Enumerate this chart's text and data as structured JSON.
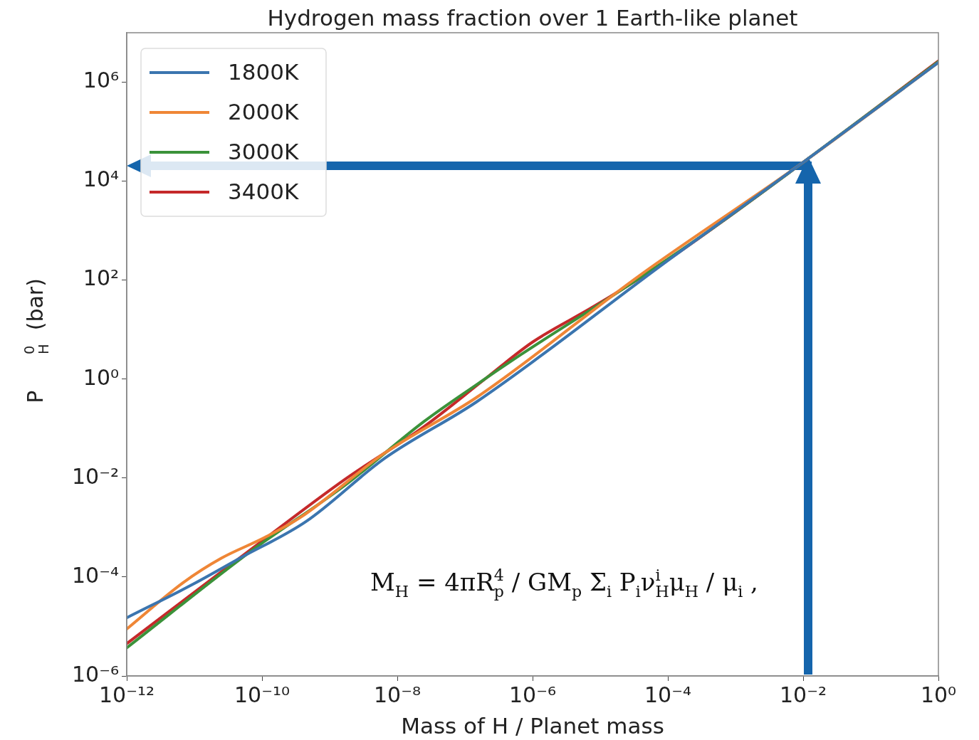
{
  "chart_data": {
    "type": "line",
    "title": "Hydrogen mass fraction over 1 Earth-like planet",
    "xlabel": "Mass of H / Planet mass",
    "ylabel": "P$_{H}$$^{0}$  (bar)",
    "log": "xy",
    "grid": false,
    "legend": "top left",
    "marker": "none",
    "line_style": "solid",
    "xlim": [
      1e-12,
      1
    ],
    "ylim": [
      1e-06,
      10000000.0
    ],
    "xticks": [
      {
        "value": 1e-12,
        "label": "10⁻¹²"
      },
      {
        "value": 1e-10,
        "label": "10⁻¹⁰"
      },
      {
        "value": 1e-08,
        "label": "10⁻⁸"
      },
      {
        "value": 1e-06,
        "label": "10⁻⁶"
      },
      {
        "value": 0.0001,
        "label": "10⁻⁴"
      },
      {
        "value": 0.01,
        "label": "10⁻²"
      },
      {
        "value": 1,
        "label": "10⁰"
      }
    ],
    "yticks": [
      {
        "value": 1e-06,
        "label": "10⁻⁶"
      },
      {
        "value": 0.0001,
        "label": "10⁻⁴"
      },
      {
        "value": 0.01,
        "label": "10⁻²"
      },
      {
        "value": 1,
        "label": "10⁰"
      },
      {
        "value": 100,
        "label": "10²"
      },
      {
        "value": 10000.0,
        "label": "10⁴"
      },
      {
        "value": 1000000.0,
        "label": "10⁶"
      }
    ],
    "annotations": [
      "M$_{H}$ = 4πR$_{p}$$^{4}$ / GM$_{p}$ Σ$_{i}$ P$_{i}$ν$_{H}$$^{i}$μ$_{H}$ / μ$_{i}$ ,"
    ],
    "series": [
      {
        "name": "1800K",
        "color": "#3b75af",
        "x": [
          1e-12,
          1e-11,
          4.7e-11,
          4.4e-10,
          6.5e-09,
          1.5e-07,
          0.0001,
          0.01,
          1
        ],
        "values": [
          1.5e-05,
          7.4e-05,
          0.00024,
          0.0013,
          0.025,
          0.35,
          250.0,
          24000.0,
          2500000.0
        ]
      },
      {
        "name": "2000K",
        "color": "#ef8636",
        "x": [
          1e-12,
          7e-12,
          2.5e-11,
          1.1e-10,
          3.7e-10,
          6.5e-09,
          1.5e-07,
          4e-05,
          0.01,
          1
        ],
        "values": [
          8.9e-06,
          7.9e-05,
          0.00024,
          0.00063,
          0.0016,
          0.032,
          0.43,
          130.0,
          24000.0,
          2500000.0
        ]
      },
      {
        "name": "3000K",
        "color": "#3b923a",
        "x": [
          1e-12,
          7.2e-11,
          1.7e-09,
          2.5e-08,
          1.5e-07,
          6.9e-07,
          1.8e-05,
          0.00045,
          0.01,
          1
        ],
        "values": [
          3.7e-06,
          0.00035,
          0.0072,
          0.14,
          0.78,
          3.2,
          56.0,
          1100.0,
          24000.0,
          2600000.0
        ]
      },
      {
        "name": "3400K",
        "color": "#c5292a",
        "x": [
          1e-12,
          7.2e-11,
          1.7e-09,
          2.5e-08,
          2.1e-07,
          1e-06,
          7.9e-06,
          8.9e-05,
          0.01,
          1
        ],
        "values": [
          4.5e-06,
          0.00038,
          0.0095,
          0.11,
          1.07,
          5.6,
          29.0,
          230.0,
          24000.0,
          2700000.0
        ]
      }
    ]
  }
}
